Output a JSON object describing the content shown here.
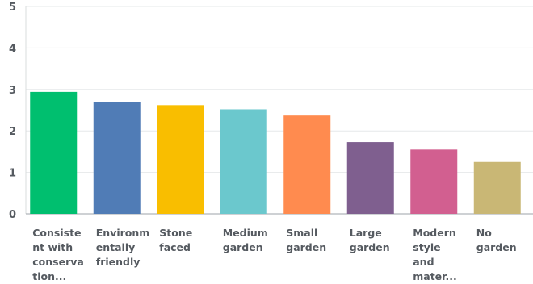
{
  "chart_data": {
    "type": "bar",
    "categories": [
      "Consiste\nnt with\nconserva\ntion...",
      "Environm\nentally\nfriendly",
      "Stone\nfaced",
      "Medium\ngarden",
      "Small\ngarden",
      "Large\ngarden",
      "Modern\nstyle\nand\nmater...",
      "No\ngarden"
    ],
    "values": [
      2.94,
      2.7,
      2.62,
      2.52,
      2.37,
      1.73,
      1.55,
      1.25
    ],
    "colors": [
      "#00bf6f",
      "#507cb6",
      "#f9be00",
      "#6bc8cd",
      "#ff8b4f",
      "#7f5f8f",
      "#d25f90",
      "#c9b775"
    ],
    "ylim": [
      0,
      5
    ],
    "yticks": [
      "0",
      "1",
      "2",
      "3",
      "4",
      "5"
    ],
    "grid": true
  }
}
